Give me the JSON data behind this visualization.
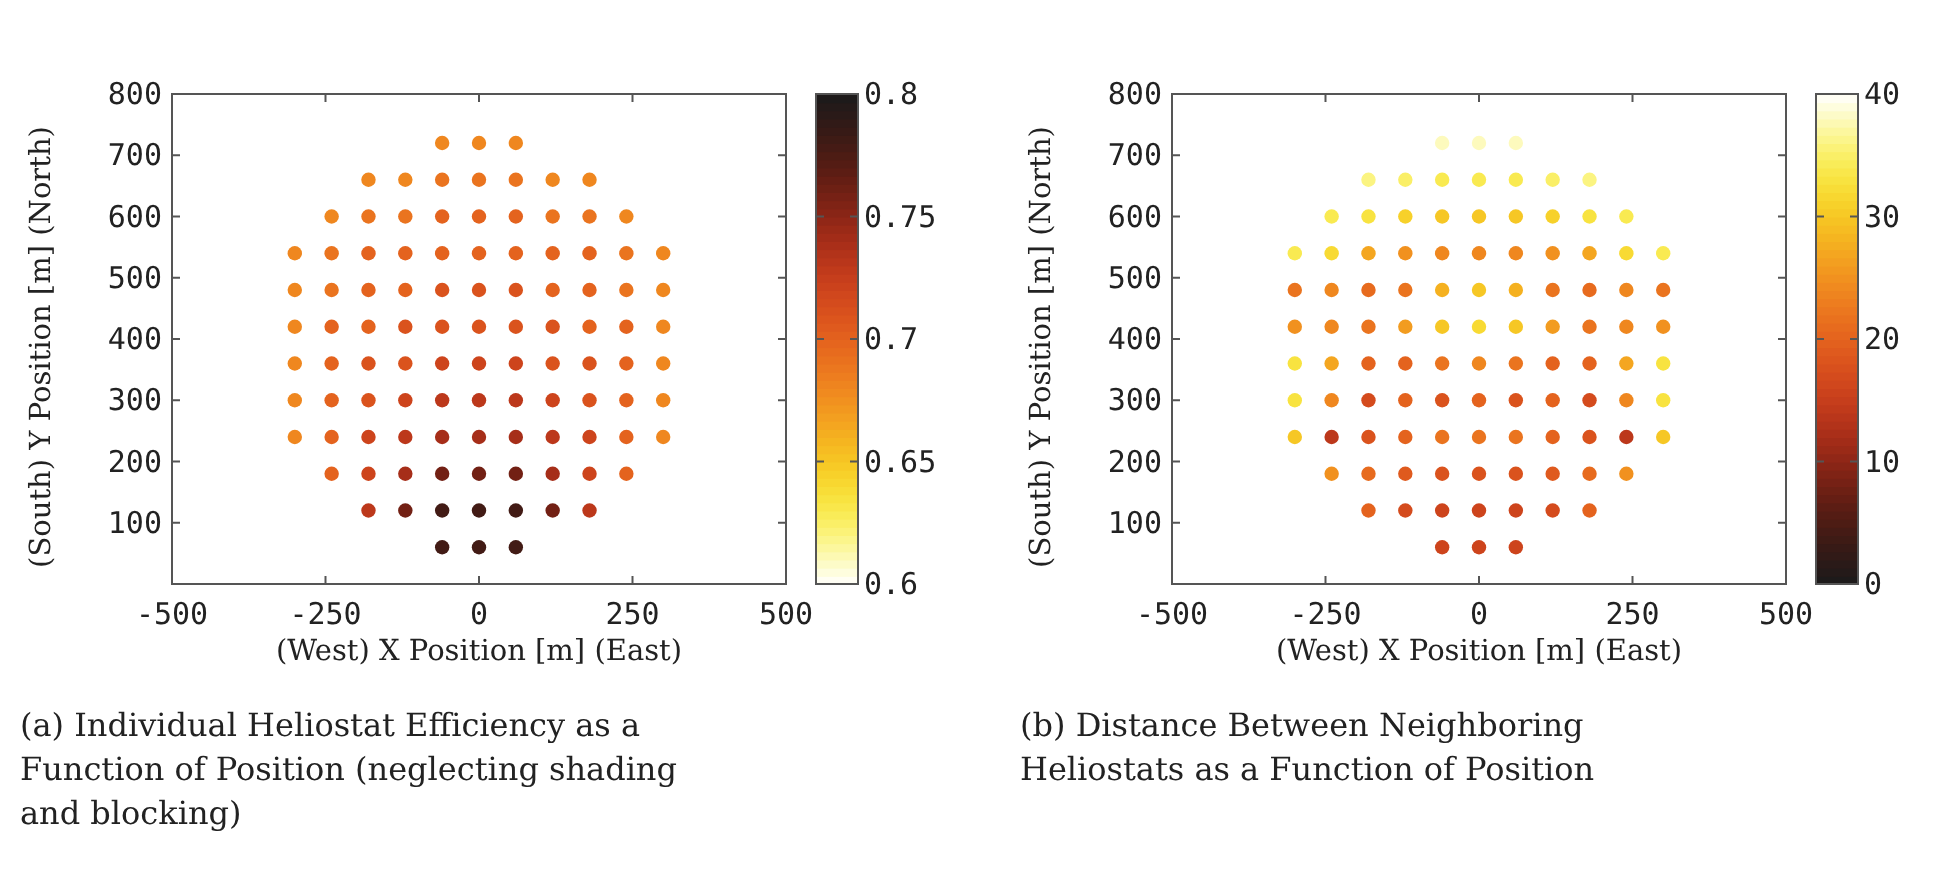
{
  "chart_data": [
    {
      "type": "scatter",
      "xlabel": "(West) X Position [m] (East)",
      "ylabel": "(South) Y Position [m] (North)",
      "xlim": [
        -500,
        500
      ],
      "ylim": [
        0,
        800
      ],
      "xticks": [
        -500,
        -250,
        0,
        250,
        500
      ],
      "yticks": [
        100,
        200,
        300,
        400,
        500,
        600,
        700,
        800
      ],
      "clim": [
        0.8,
        0.6
      ],
      "cticks": [
        0.6,
        0.65,
        0.7,
        0.75,
        0.8
      ],
      "marker": "circle",
      "annotations": [
        "(a) Individual Heliostat Efficiency as a Function of Position (neglecting shading and blocking)"
      ],
      "series": [
        {
          "x": [
            -60,
            0,
            60,
            -180,
            -120,
            -60,
            0,
            60,
            120,
            180,
            -240,
            -180,
            -120,
            -60,
            0,
            60,
            120,
            180,
            240,
            -300,
            -240,
            -180,
            -120,
            -60,
            0,
            60,
            120,
            180,
            240,
            300,
            -300,
            -240,
            -180,
            -120,
            -60,
            0,
            60,
            120,
            180,
            240,
            300,
            -300,
            -240,
            -180,
            -120,
            -60,
            0,
            60,
            120,
            180,
            240,
            300,
            -300,
            -240,
            -180,
            -120,
            -60,
            0,
            60,
            120,
            180,
            240,
            300,
            -300,
            -240,
            -180,
            -120,
            -60,
            0,
            60,
            120,
            180,
            240,
            300,
            -300,
            -240,
            -180,
            -120,
            -60,
            0,
            60,
            120,
            180,
            240,
            300,
            -240,
            -180,
            -120,
            -60,
            0,
            60,
            120,
            180,
            240,
            -180,
            -120,
            -60,
            0,
            60,
            120,
            180,
            -60,
            0,
            60
          ],
          "values": [
            60,
            60,
            60,
            120,
            120,
            120,
            120,
            120,
            120,
            120,
            180,
            180,
            180,
            180,
            180,
            180,
            180,
            180,
            180,
            240,
            240,
            240,
            240,
            240,
            240,
            240,
            240,
            240,
            240,
            240,
            300,
            300,
            300,
            300,
            300,
            300,
            300,
            300,
            300,
            300,
            300,
            360,
            360,
            360,
            360,
            360,
            360,
            360,
            360,
            360,
            360,
            360,
            420,
            420,
            420,
            420,
            420,
            420,
            420,
            420,
            420,
            420,
            420,
            480,
            480,
            480,
            480,
            480,
            480,
            480,
            480,
            480,
            480,
            480,
            540,
            540,
            540,
            540,
            540,
            540,
            540,
            540,
            540,
            540,
            540,
            600,
            600,
            600,
            600,
            600,
            600,
            600,
            600,
            600,
            660,
            660,
            660,
            660,
            660,
            660,
            660,
            720,
            720,
            720
          ],
          "cvalues": [
            0.78,
            0.78,
            0.78,
            0.73,
            0.76,
            0.78,
            0.78,
            0.78,
            0.76,
            0.73,
            0.7,
            0.72,
            0.74,
            0.76,
            0.76,
            0.76,
            0.74,
            0.72,
            0.7,
            0.68,
            0.7,
            0.72,
            0.73,
            0.74,
            0.74,
            0.74,
            0.73,
            0.72,
            0.7,
            0.68,
            0.68,
            0.7,
            0.71,
            0.72,
            0.73,
            0.73,
            0.73,
            0.72,
            0.71,
            0.7,
            0.68,
            0.68,
            0.7,
            0.71,
            0.71,
            0.72,
            0.72,
            0.72,
            0.71,
            0.71,
            0.7,
            0.68,
            0.68,
            0.7,
            0.7,
            0.71,
            0.71,
            0.71,
            0.71,
            0.71,
            0.7,
            0.7,
            0.68,
            0.68,
            0.69,
            0.7,
            0.7,
            0.71,
            0.71,
            0.71,
            0.7,
            0.7,
            0.69,
            0.68,
            0.68,
            0.69,
            0.7,
            0.7,
            0.7,
            0.7,
            0.7,
            0.7,
            0.7,
            0.69,
            0.68,
            0.68,
            0.69,
            0.69,
            0.7,
            0.7,
            0.7,
            0.69,
            0.69,
            0.68,
            0.68,
            0.68,
            0.69,
            0.69,
            0.69,
            0.68,
            0.68,
            0.68,
            0.68,
            0.68
          ]
        }
      ]
    },
    {
      "type": "scatter",
      "xlabel": "(West) X Position [m] (East)",
      "ylabel": "(South) Y Position [m] (North)",
      "xlim": [
        -500,
        500
      ],
      "ylim": [
        0,
        800
      ],
      "xticks": [
        -500,
        -250,
        0,
        250,
        500
      ],
      "yticks": [
        100,
        200,
        300,
        400,
        500,
        600,
        700,
        800
      ],
      "clim": [
        0,
        40
      ],
      "cticks": [
        0,
        10,
        20,
        30,
        40
      ],
      "marker": "circle",
      "annotations": [
        "(b) Distance Between Neighboring Heliostats as a Function of Position"
      ],
      "series": [
        {
          "x": [
            -60,
            0,
            60,
            -180,
            -120,
            -60,
            0,
            60,
            120,
            180,
            -240,
            -180,
            -120,
            -60,
            0,
            60,
            120,
            180,
            240,
            -300,
            -240,
            -180,
            -120,
            -60,
            0,
            60,
            120,
            180,
            240,
            300,
            -300,
            -240,
            -180,
            -120,
            -60,
            0,
            60,
            120,
            180,
            240,
            300,
            -300,
            -240,
            -180,
            -120,
            -60,
            0,
            60,
            120,
            180,
            240,
            300,
            -300,
            -240,
            -180,
            -120,
            -60,
            0,
            60,
            120,
            180,
            240,
            300,
            -300,
            -240,
            -180,
            -120,
            -60,
            0,
            60,
            120,
            180,
            240,
            300,
            -300,
            -240,
            -180,
            -120,
            -60,
            0,
            60,
            120,
            180,
            240,
            300,
            -240,
            -180,
            -120,
            -60,
            0,
            60,
            120,
            180,
            240,
            -180,
            -120,
            -60,
            0,
            60,
            120,
            180,
            -60,
            0,
            60
          ],
          "values": [
            60,
            60,
            60,
            120,
            120,
            120,
            120,
            120,
            120,
            120,
            180,
            180,
            180,
            180,
            180,
            180,
            180,
            180,
            180,
            240,
            240,
            240,
            240,
            240,
            240,
            240,
            240,
            240,
            240,
            240,
            300,
            300,
            300,
            300,
            300,
            300,
            300,
            300,
            300,
            300,
            300,
            360,
            360,
            360,
            360,
            360,
            360,
            360,
            360,
            360,
            360,
            360,
            420,
            420,
            420,
            420,
            420,
            420,
            420,
            420,
            420,
            420,
            420,
            480,
            480,
            480,
            480,
            480,
            480,
            480,
            480,
            480,
            480,
            480,
            540,
            540,
            540,
            540,
            540,
            540,
            540,
            540,
            540,
            540,
            540,
            600,
            600,
            600,
            600,
            600,
            600,
            600,
            600,
            600,
            660,
            660,
            660,
            660,
            660,
            660,
            660,
            720,
            720,
            720
          ],
          "cvalues": [
            16,
            16,
            16,
            20,
            17,
            16,
            16,
            16,
            17,
            20,
            25,
            21,
            19,
            18,
            18,
            18,
            19,
            21,
            25,
            30,
            14,
            18,
            20,
            22,
            22,
            22,
            20,
            18,
            14,
            30,
            33,
            24,
            17,
            20,
            18,
            20,
            18,
            20,
            17,
            24,
            33,
            33,
            27,
            20,
            20,
            22,
            24,
            22,
            20,
            20,
            27,
            33,
            25,
            24,
            22,
            26,
            30,
            32,
            30,
            26,
            22,
            24,
            25,
            22,
            24,
            21,
            22,
            28,
            30,
            28,
            22,
            21,
            24,
            22,
            34,
            32,
            27,
            25,
            24,
            24,
            24,
            25,
            27,
            32,
            34,
            34,
            33,
            31,
            30,
            30,
            30,
            31,
            33,
            34,
            36,
            35,
            34,
            34,
            34,
            35,
            36,
            38,
            38,
            38
          ]
        }
      ]
    }
  ]
}
